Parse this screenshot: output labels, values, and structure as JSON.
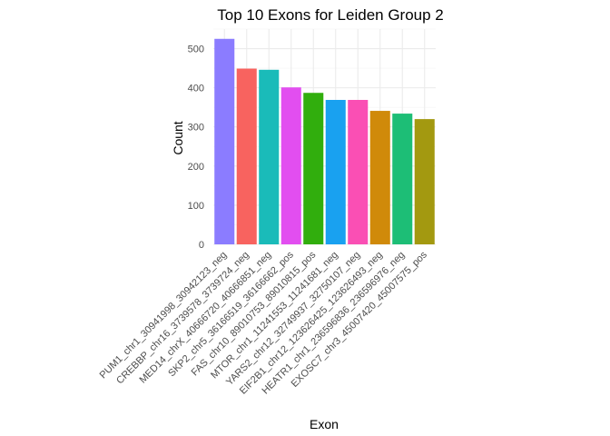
{
  "chart_data": {
    "type": "bar",
    "title": "Top 10 Exons for Leiden Group 2",
    "xlabel": "Exon",
    "ylabel": "Count",
    "ylim": [
      0,
      550
    ],
    "yticks": [
      0,
      100,
      200,
      300,
      400,
      500
    ],
    "grid": true,
    "legend": "none",
    "categories": [
      "PUM1_chr1_30941998_30942123_neg",
      "CREBBP_chr16_3739578_3739724_neg",
      "MED14_chrX_40666720_40666851_neg",
      "SKP2_chr5_36166519_36166662_pos",
      "FAS_chr10_89010753_89010815_pos",
      "MTOR_chr1_11241553_11241681_neg",
      "YARS2_chr12_32749937_32750107_neg",
      "EIF2B1_chr12_123626425_123626493_neg",
      "HEATR1_chr1_236596836_236596976_neg",
      "EXOSC7_chr3_45007420_45007575_pos"
    ],
    "values": [
      525,
      449,
      446,
      401,
      387,
      369,
      369,
      341,
      334,
      320
    ],
    "colors": [
      "#8B7CFF",
      "#F8635F",
      "#1ABBB9",
      "#E24EF0",
      "#31AE0D",
      "#19A1F0",
      "#FA4FB4",
      "#D08A0A",
      "#1DBE76",
      "#A39910"
    ]
  }
}
